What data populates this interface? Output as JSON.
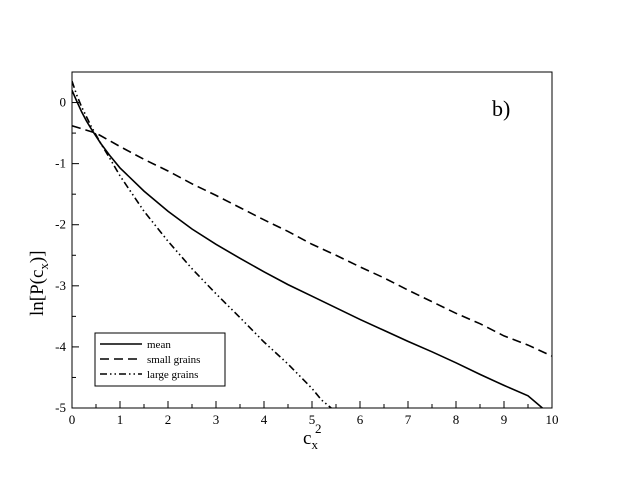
{
  "chart_data": {
    "type": "line",
    "panel_label": "b)",
    "xlabel": {
      "base": "c",
      "sub": "x",
      "sup": "2"
    },
    "ylabel": {
      "prefix": "ln[P(c",
      "sub": "x",
      "suffix": ")]"
    },
    "xlim": [
      0,
      10
    ],
    "ylim": [
      -5,
      0.5
    ],
    "x_ticks": [
      0,
      1,
      2,
      3,
      4,
      5,
      6,
      7,
      8,
      9,
      10
    ],
    "x_tick_labels": [
      "0",
      "1",
      "2",
      "3",
      "4",
      "5",
      "6",
      "7",
      "8",
      "9",
      "10"
    ],
    "y_ticks": [
      0,
      -1,
      -2,
      -3,
      -4,
      -5
    ],
    "y_tick_labels": [
      "0",
      "-1",
      "-2",
      "-3",
      "-4",
      "-5"
    ],
    "grid": false,
    "legend_position": "bottom-left",
    "series": [
      {
        "name": "mean",
        "style": "solid",
        "color": "#000000",
        "x": [
          0,
          0.1,
          0.2,
          0.3,
          0.4,
          0.5,
          0.6,
          0.8,
          1.0,
          1.5,
          2.0,
          2.5,
          3.0,
          3.5,
          4.0,
          4.5,
          5.0,
          5.5,
          6.0,
          6.5,
          7.0,
          7.5,
          8.0,
          8.5,
          9.0,
          9.5,
          9.8
        ],
        "y": [
          0.2,
          0.02,
          -0.15,
          -0.3,
          -0.43,
          -0.55,
          -0.67,
          -0.88,
          -1.07,
          -1.45,
          -1.78,
          -2.07,
          -2.32,
          -2.55,
          -2.77,
          -2.98,
          -3.17,
          -3.36,
          -3.55,
          -3.73,
          -3.91,
          -4.08,
          -4.26,
          -4.45,
          -4.63,
          -4.8,
          -5.0
        ]
      },
      {
        "name": "small grains",
        "style": "dashed",
        "color": "#000000",
        "x": [
          0,
          0.5,
          1.0,
          1.5,
          2.0,
          2.5,
          3.0,
          3.5,
          4.0,
          4.5,
          5.0,
          5.5,
          6.0,
          6.5,
          7.0,
          7.5,
          8.0,
          8.5,
          9.0,
          9.5,
          10.0
        ],
        "y": [
          -0.38,
          -0.5,
          -0.72,
          -0.93,
          -1.12,
          -1.33,
          -1.52,
          -1.72,
          -1.92,
          -2.11,
          -2.32,
          -2.5,
          -2.69,
          -2.87,
          -3.07,
          -3.26,
          -3.45,
          -3.62,
          -3.82,
          -3.97,
          -4.15
        ]
      },
      {
        "name": "large grains",
        "style": "dashdotdot",
        "color": "#000000",
        "x": [
          0,
          0.1,
          0.2,
          0.3,
          0.4,
          0.5,
          0.6,
          0.8,
          1.0,
          1.5,
          2.0,
          2.5,
          3.0,
          3.5,
          4.0,
          4.5,
          5.0,
          5.2,
          5.4
        ],
        "y": [
          0.35,
          0.12,
          -0.07,
          -0.23,
          -0.39,
          -0.53,
          -0.67,
          -0.93,
          -1.2,
          -1.78,
          -2.27,
          -2.72,
          -3.13,
          -3.52,
          -3.92,
          -4.28,
          -4.68,
          -4.87,
          -5.0
        ]
      }
    ]
  }
}
